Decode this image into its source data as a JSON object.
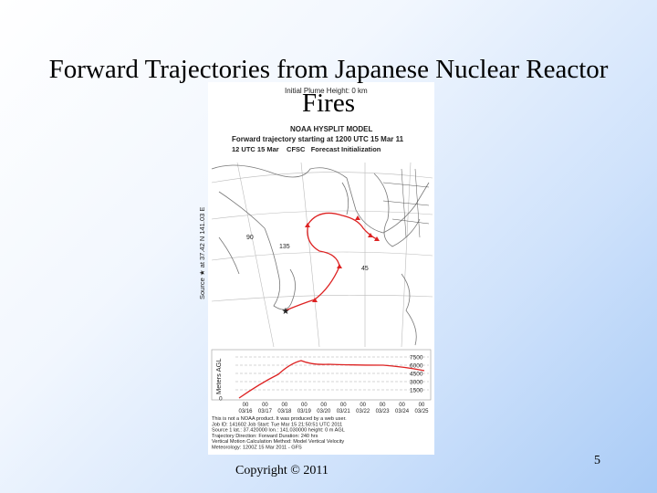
{
  "slide": {
    "title": "Forward Trajectories from Japanese Nuclear Reactor Fires",
    "footer": "Copyright © 2011",
    "page_number": "5"
  },
  "figure": {
    "plume_height": "Initial Plume Height: 0 km",
    "model": "NOAA HYSPLIT MODEL",
    "subtitle": "Forward trajectory starting at 1200 UTC 15 Mar 11",
    "init": "12 UTC 15 Mar    CFSC   Forecast Initialization",
    "source_label": "Source ★ at 37.42 N 141.03 E",
    "map_labels": [
      "90",
      "135",
      "45"
    ],
    "y_axis_label": "Meters AGL",
    "y_ticks": [
      "7500",
      "6000",
      "4500",
      "3000",
      "1500",
      "0"
    ],
    "x_ticks": [
      {
        "hour": "00",
        "date": "03/16"
      },
      {
        "hour": "00",
        "date": "03/17"
      },
      {
        "hour": "00",
        "date": "03/18"
      },
      {
        "hour": "00",
        "date": "03/19"
      },
      {
        "hour": "00",
        "date": "03/20"
      },
      {
        "hour": "00",
        "date": "03/21"
      },
      {
        "hour": "00",
        "date": "03/22"
      },
      {
        "hour": "00",
        "date": "03/23"
      },
      {
        "hour": "00",
        "date": "03/24"
      },
      {
        "hour": "00",
        "date": "03/25"
      }
    ],
    "notes": [
      "This is not a NOAA product. It was produced by a web user.",
      "Job ID: 141602        Job Start: Tue Mar 15 21:50:51 UTC 2011",
      "Source 1     lat.: 37.420000    lon.: 141.030000    height: 0 m AGL",
      "Trajectory Direction: Forward      Duration: 240 hrs",
      "Vertical Motion Calculation Method:       Model Vertical Velocity",
      "Meteorology: 1200Z 15 Mar 2011 - GFS"
    ]
  }
}
